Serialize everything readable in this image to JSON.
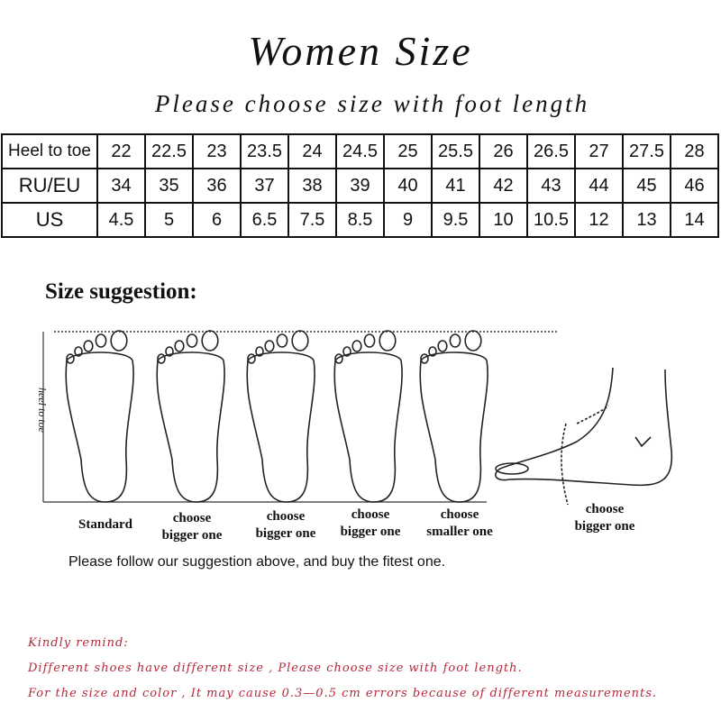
{
  "title": "Women Size",
  "subtitle": "Please choose size with foot length",
  "table": {
    "rows": [
      {
        "label": "Heel to toe",
        "values": [
          "22",
          "22.5",
          "23",
          "23.5",
          "24",
          "24.5",
          "25",
          "25.5",
          "26",
          "26.5",
          "27",
          "27.5",
          "28"
        ]
      },
      {
        "label": "RU/EU",
        "values": [
          "34",
          "35",
          "36",
          "37",
          "38",
          "39",
          "40",
          "41",
          "42",
          "43",
          "44",
          "45",
          "46"
        ]
      },
      {
        "label": "US",
        "values": [
          "4.5",
          "5",
          "6",
          "6.5",
          "7.5",
          "8.5",
          "9",
          "9.5",
          "10",
          "10.5",
          "12",
          "13",
          "14"
        ]
      }
    ]
  },
  "suggestion": {
    "heading": "Size suggestion:",
    "axis_label": "heel to toe",
    "labels": [
      {
        "line1": "Standard",
        "line2": ""
      },
      {
        "line1": "choose",
        "line2": "bigger one"
      },
      {
        "line1": "choose",
        "line2": "bigger one"
      },
      {
        "line1": "choose",
        "line2": "bigger one"
      },
      {
        "line1": "choose",
        "line2": "smaller one"
      },
      {
        "line1": "choose",
        "line2": "bigger one"
      }
    ],
    "follow": "Please follow our suggestion above, and buy the fitest one."
  },
  "remind": {
    "heading": "Kindly remind:",
    "line1": "Different shoes have different size , Please choose size with foot length.",
    "line2": "For the size and color , It may cause 0.3—0.5 cm errors because of different measurements.",
    "color": "#b3283a"
  }
}
